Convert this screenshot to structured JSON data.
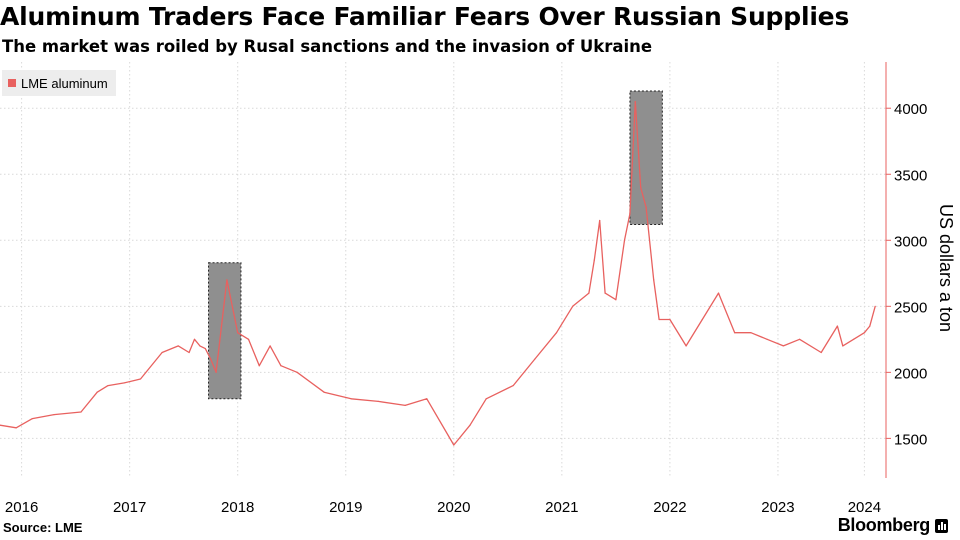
{
  "title": "Aluminum Traders Face Familiar Fears Over Russian Supplies",
  "subtitle": "The market was roiled by Rusal sanctions and the invasion of Ukraine",
  "source": "Source: LME",
  "brand": "Bloomberg",
  "colors": {
    "series": "#e8615f",
    "axis": "#e8615f",
    "highlight": "#8f8f8f"
  },
  "chart_data": {
    "type": "line",
    "ylabel": "US dollars a ton",
    "ylim": [
      1200,
      4350
    ],
    "yticks": [
      1500,
      2000,
      2500,
      3000,
      3500,
      4000
    ],
    "xlim": [
      2016.0,
      2024.2
    ],
    "xticks": [
      {
        "label": "2016",
        "value": 2016.2
      },
      {
        "label": "2017",
        "value": 2017.2
      },
      {
        "label": "2018",
        "value": 2018.2
      },
      {
        "label": "2019",
        "value": 2019.2
      },
      {
        "label": "2020",
        "value": 2020.2
      },
      {
        "label": "2021",
        "value": 2021.2
      },
      {
        "label": "2022",
        "value": 2022.2
      },
      {
        "label": "2023",
        "value": 2023.2
      },
      {
        "label": "2024",
        "value": 2024.0
      }
    ],
    "legend": {
      "position": "top-left",
      "entries": [
        "LME aluminum"
      ]
    },
    "series": [
      {
        "name": "LME aluminum",
        "x": [
          2016.0,
          2016.15,
          2016.3,
          2016.5,
          2016.75,
          2016.9,
          2017.0,
          2017.15,
          2017.3,
          2017.5,
          2017.65,
          2017.75,
          2017.8,
          2017.85,
          2017.9,
          2017.95,
          2018.0,
          2018.05,
          2018.1,
          2018.2,
          2018.3,
          2018.4,
          2018.5,
          2018.6,
          2018.75,
          2019.0,
          2019.25,
          2019.5,
          2019.75,
          2019.95,
          2020.2,
          2020.35,
          2020.5,
          2020.75,
          2020.95,
          2021.15,
          2021.3,
          2021.45,
          2021.5,
          2021.55,
          2021.6,
          2021.7,
          2021.78,
          2021.83,
          2021.88,
          2021.93,
          2021.98,
          2022.05,
          2022.1,
          2022.2,
          2022.35,
          2022.5,
          2022.65,
          2022.8,
          2022.95,
          2023.1,
          2023.25,
          2023.4,
          2023.6,
          2023.75,
          2023.8,
          2023.9,
          2024.0,
          2024.05,
          2024.1
        ],
        "y": [
          1600,
          1580,
          1650,
          1680,
          1700,
          1850,
          1900,
          1920,
          1950,
          2150,
          2200,
          2150,
          2250,
          2200,
          2180,
          2100,
          2000,
          2350,
          2700,
          2300,
          2250,
          2050,
          2200,
          2050,
          2000,
          1850,
          1800,
          1780,
          1750,
          1800,
          1450,
          1600,
          1800,
          1900,
          2100,
          2300,
          2500,
          2600,
          2850,
          3150,
          2600,
          2550,
          3000,
          3200,
          4050,
          3400,
          3250,
          2700,
          2400,
          2400,
          2200,
          2400,
          2600,
          2300,
          2300,
          2250,
          2200,
          2250,
          2150,
          2350,
          2200,
          2250,
          2300,
          2350,
          2500
        ]
      }
    ],
    "highlights": [
      {
        "x0": 2017.93,
        "x1": 2018.23,
        "y0": 1800,
        "y1": 2830
      },
      {
        "x0": 2021.83,
        "x1": 2022.13,
        "y0": 3120,
        "y1": 4130
      }
    ]
  }
}
